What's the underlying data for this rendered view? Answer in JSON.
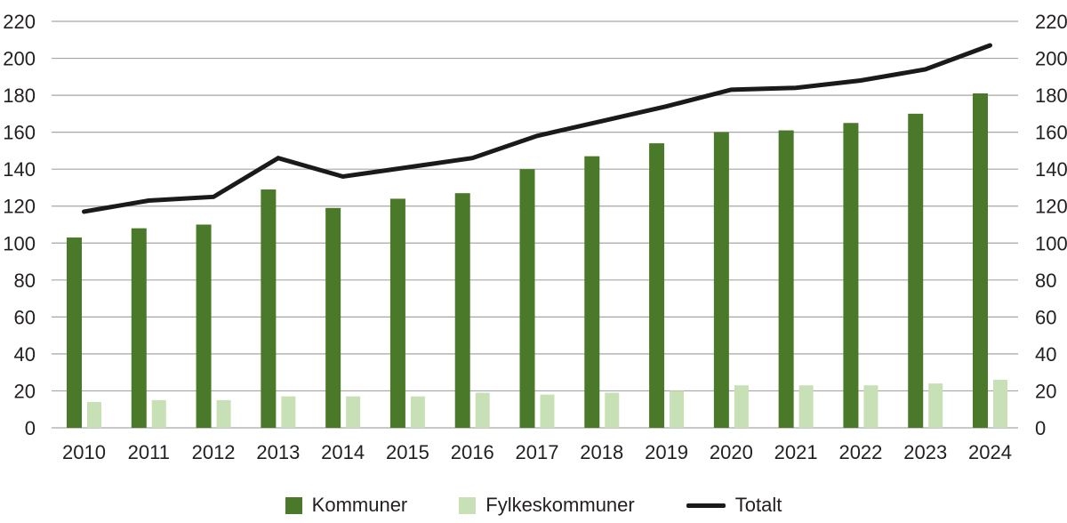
{
  "chart_data": {
    "type": "bar",
    "subtype": "grouped-bars-with-line-overlay",
    "categories": [
      "2010",
      "2011",
      "2012",
      "2013",
      "2014",
      "2015",
      "2016",
      "2017",
      "2018",
      "2019",
      "2020",
      "2021",
      "2022",
      "2023",
      "2024"
    ],
    "series": [
      {
        "name": "Kommuner",
        "type": "bar",
        "color": "#4a7a29",
        "values": [
          103,
          108,
          110,
          129,
          119,
          124,
          127,
          140,
          147,
          154,
          160,
          161,
          165,
          170,
          181
        ]
      },
      {
        "name": "Fylkeskommuner",
        "type": "bar",
        "color": "#c8e0b5",
        "values": [
          14,
          15,
          15,
          17,
          17,
          17,
          19,
          18,
          19,
          20,
          23,
          23,
          23,
          24,
          26
        ]
      },
      {
        "name": "Totalt",
        "type": "line",
        "color": "#1a1a1a",
        "values": [
          117,
          123,
          125,
          146,
          136,
          141,
          146,
          158,
          166,
          174,
          183,
          184,
          188,
          194,
          207
        ]
      }
    ],
    "ylim": [
      0,
      220
    ],
    "yticks": [
      0,
      20,
      40,
      60,
      80,
      100,
      120,
      140,
      160,
      180,
      200,
      220
    ],
    "dual_y_axis": true,
    "grid": true,
    "legend_position": "bottom"
  },
  "legend": {
    "items": [
      {
        "label": "Kommuner",
        "swatch": "square",
        "color": "#4a7a29"
      },
      {
        "label": "Fylkeskommuner",
        "swatch": "square",
        "color": "#c8e0b5"
      },
      {
        "label": "Totalt",
        "swatch": "line",
        "color": "#1a1a1a"
      }
    ]
  },
  "colors": {
    "grid": "#a6a6a6",
    "text": "#231f20",
    "background": "#ffffff",
    "bar_dark_green": "#4a7a29",
    "bar_light_green": "#c8e0b5",
    "line_black": "#1a1a1a"
  }
}
